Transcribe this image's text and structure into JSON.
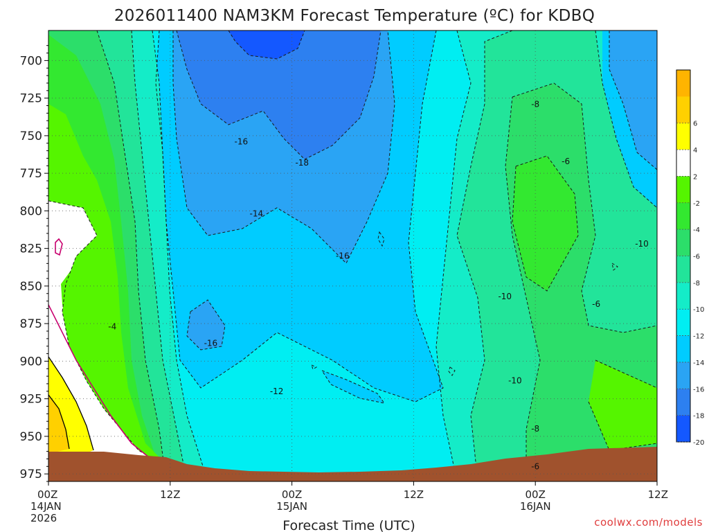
{
  "chart_data": {
    "type": "contour",
    "title": "2026011400 NAM3KM Forecast Temperature (ºC) for KDBQ",
    "xlabel": "Forecast Time (UTC)",
    "credit": "coolwx.com/models",
    "x_ticks": [
      {
        "hours": 0,
        "l1": "00Z",
        "l2": "14JAN",
        "l3": "2026"
      },
      {
        "hours": 12,
        "l1": "12Z",
        "l2": "",
        "l3": ""
      },
      {
        "hours": 24,
        "l1": "00Z",
        "l2": "15JAN",
        "l3": ""
      },
      {
        "hours": 36,
        "l1": "12Z",
        "l2": "",
        "l3": ""
      },
      {
        "hours": 48,
        "l1": "00Z",
        "l2": "16JAN",
        "l3": ""
      },
      {
        "hours": 60,
        "l1": "12Z",
        "l2": "",
        "l3": ""
      }
    ],
    "y_ticks": [
      700,
      725,
      750,
      775,
      800,
      825,
      850,
      875,
      900,
      925,
      950,
      975
    ],
    "xlim_hours": [
      0,
      60
    ],
    "ylim_hPa": [
      980,
      680
    ],
    "grid": true,
    "colorbar": {
      "position": "right",
      "ticks": [
        6,
        4,
        2,
        -2,
        -4,
        -6,
        -8,
        -10,
        -12,
        -14,
        -16,
        -18,
        -20
      ],
      "levels": [
        {
          "lo": 6,
          "hi": 8,
          "color": "#ffb400"
        },
        {
          "lo": 4,
          "hi": 6,
          "color": "#ffd000"
        },
        {
          "lo": 2,
          "hi": 4,
          "color": "#ffff00"
        },
        {
          "lo": -2,
          "hi": 2,
          "color": "#ffffff"
        },
        {
          "lo": -4,
          "hi": -2,
          "color": "#55f500"
        },
        {
          "lo": -6,
          "hi": -4,
          "color": "#33e830"
        },
        {
          "lo": -8,
          "hi": -6,
          "color": "#2cde6a"
        },
        {
          "lo": -10,
          "hi": -8,
          "color": "#22e49a"
        },
        {
          "lo": -12,
          "hi": -10,
          "color": "#14ecc8"
        },
        {
          "lo": -14,
          "hi": -12,
          "color": "#00eef2"
        },
        {
          "lo": -16,
          "hi": -14,
          "color": "#00ccff"
        },
        {
          "lo": -18,
          "hi": -16,
          "color": "#2aa4f4"
        },
        {
          "lo": -20,
          "hi": -18,
          "color": "#2d80f0"
        },
        {
          "lo": -22,
          "hi": -20,
          "color": "#1458ff"
        }
      ]
    },
    "contour_labels": [
      {
        "text": "-16",
        "hours": 19.0,
        "hPa": 754
      },
      {
        "text": "-18",
        "hours": 25.0,
        "hPa": 768
      },
      {
        "text": "-14",
        "hours": 20.5,
        "hPa": 802
      },
      {
        "text": "-16",
        "hours": 29.0,
        "hPa": 830
      },
      {
        "text": "-16",
        "hours": 16.0,
        "hPa": 888
      },
      {
        "text": "-12",
        "hours": 22.5,
        "hPa": 920
      },
      {
        "text": "-4",
        "hours": 6.3,
        "hPa": 877
      },
      {
        "text": "-8",
        "hours": 48.0,
        "hPa": 729
      },
      {
        "text": "-6",
        "hours": 51.0,
        "hPa": 767
      },
      {
        "text": "-10",
        "hours": 58.5,
        "hPa": 822
      },
      {
        "text": "-10",
        "hours": 45.0,
        "hPa": 857
      },
      {
        "text": "-6",
        "hours": 54.0,
        "hPa": 862
      },
      {
        "text": "-10",
        "hours": 46.0,
        "hPa": 913
      },
      {
        "text": "-8",
        "hours": 48.0,
        "hPa": 945
      },
      {
        "text": "-6",
        "hours": 48.0,
        "hPa": 970
      }
    ]
  }
}
